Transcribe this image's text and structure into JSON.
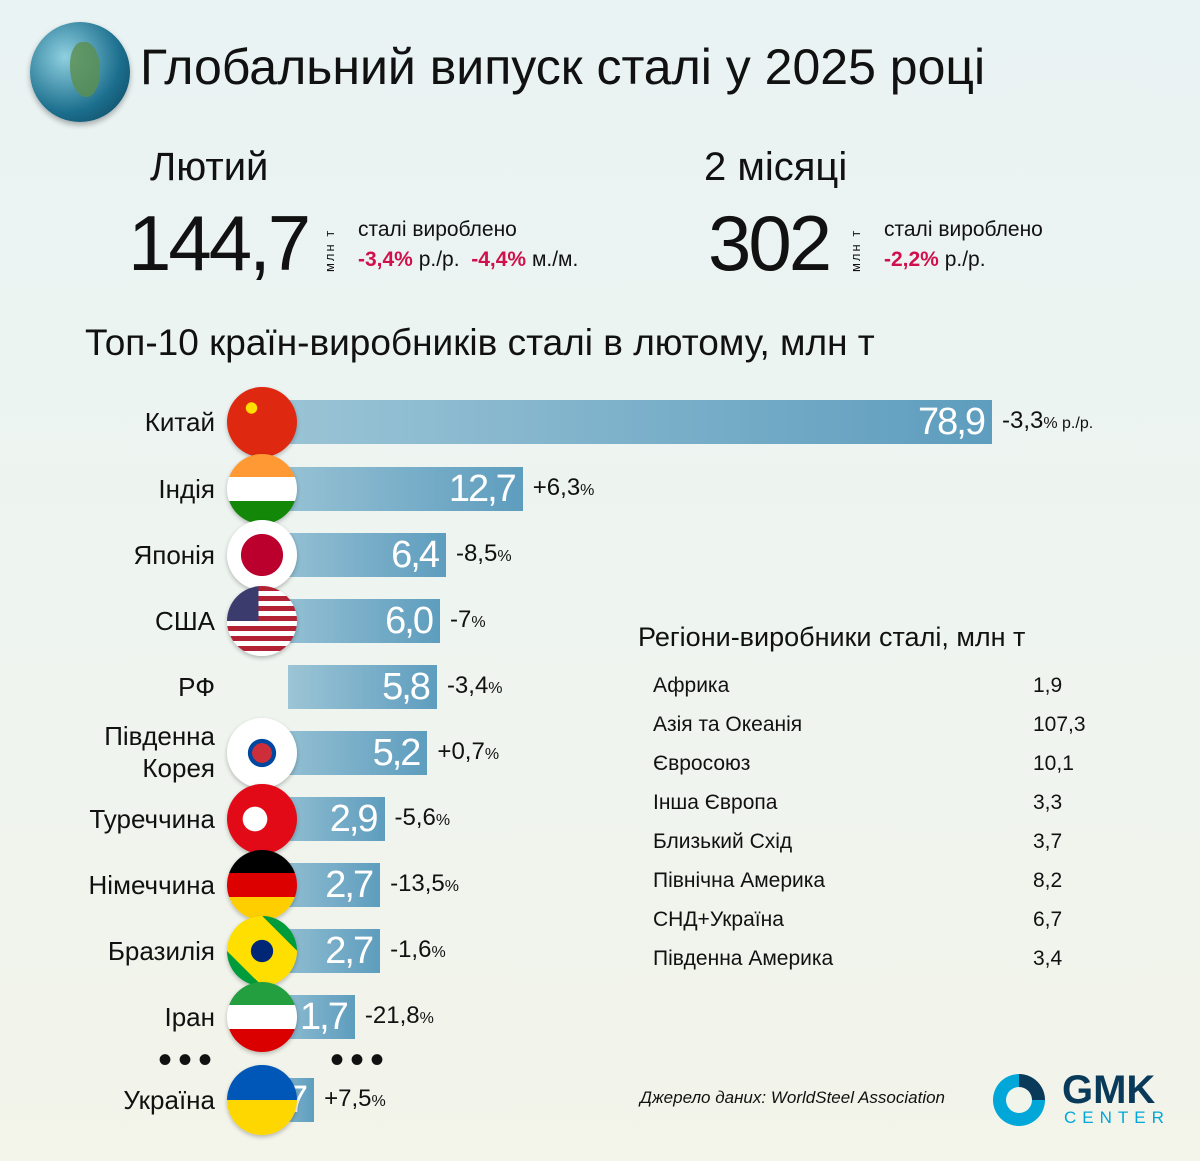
{
  "title": "Глобальний випуск сталі у 2025 році",
  "month": {
    "label": "Лютий",
    "value": "144,7",
    "unit": "млн т",
    "desc": "сталі вироблено",
    "yoy": "-3,4%",
    "yoy_label": "р./р.",
    "mom": "-4,4%",
    "mom_label": "м./м."
  },
  "two_months": {
    "label": "2 місяці",
    "value": "302",
    "unit": "млн т",
    "desc": "сталі вироблено",
    "yoy": "-2,2%",
    "yoy_label": "р./р."
  },
  "chart_data": {
    "type": "bar",
    "title": "Топ-10 країн-виробників сталі в лютому, млн т",
    "categories": [
      "Китай",
      "Індія",
      "Японія",
      "США",
      "РФ",
      "Південна Корея",
      "Туреччина",
      "Німеччина",
      "Бразилія",
      "Іран",
      "Україна"
    ],
    "values": [
      78.9,
      12.7,
      6.4,
      6.0,
      5.8,
      5.2,
      2.9,
      2.7,
      2.7,
      1.7,
      0.57
    ],
    "labels": [
      "78,9",
      "12,7",
      "6,4",
      "6,0",
      "5,8",
      "5,2",
      "2,9",
      "2,7",
      "2,7",
      "1,7",
      "0,57"
    ],
    "changes": [
      "-3,3",
      "+6,3",
      "-8,5",
      "-7",
      "-3,4",
      "+0,7",
      "-5,6",
      "-13,5",
      "-1,6",
      "-21,8",
      "+7,5"
    ],
    "change_suffix": "%",
    "china_suffix": "% р./р."
  },
  "ellipsis": "•••",
  "regions": {
    "title": "Регіони-виробники сталі, млн т",
    "items": [
      {
        "name": "Африка",
        "value": "1,9"
      },
      {
        "name": "Азія та Океанія",
        "value": "107,3"
      },
      {
        "name": "Євросоюз",
        "value": "10,1"
      },
      {
        "name": "Інша Європа",
        "value": "3,3"
      },
      {
        "name": "Близький Схід",
        "value": "3,7"
      },
      {
        "name": "Північна Америка",
        "value": "8,2"
      },
      {
        "name": "СНД+Україна",
        "value": "6,7"
      },
      {
        "name": "Південна Америка",
        "value": "3,4"
      }
    ]
  },
  "source": "Джерело даних: WorldSteel Association",
  "logo": {
    "main": "GMK",
    "sub": "CENTER"
  },
  "colors": {
    "negative": "#d0104c",
    "bar": "#6aa4c2",
    "logo_dark": "#0a3a5a",
    "logo_light": "#00a7d8"
  }
}
